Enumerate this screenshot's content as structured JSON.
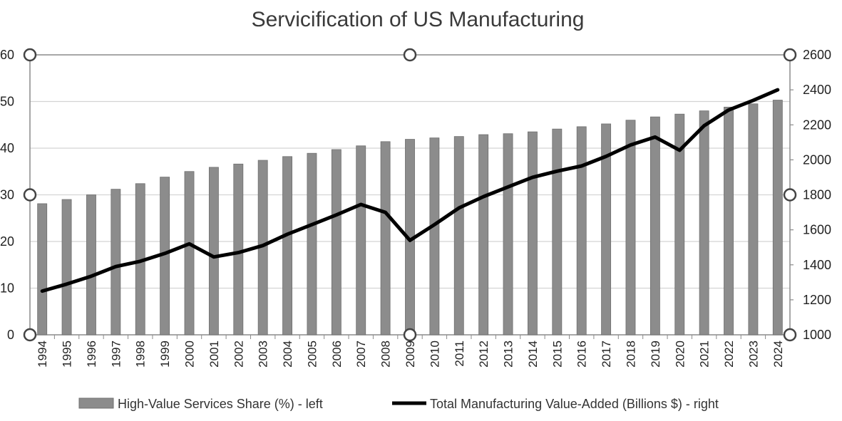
{
  "chart_data": {
    "type": "bar+line",
    "title": "Servicification of US Manufacturing",
    "categories": [
      "1994",
      "1995",
      "1996",
      "1997",
      "1998",
      "1999",
      "2000",
      "2001",
      "2002",
      "2003",
      "2004",
      "2005",
      "2006",
      "2007",
      "2008",
      "2009",
      "2010",
      "2011",
      "2012",
      "2013",
      "2014",
      "2015",
      "2016",
      "2017",
      "2018",
      "2019",
      "2020",
      "2021",
      "2022",
      "2023",
      "2024"
    ],
    "series": [
      {
        "name": "High-Value Services Share (%) - left",
        "type": "bar",
        "axis": "left",
        "color": "#8c8c8c",
        "values": [
          28.1,
          29.0,
          30.0,
          31.2,
          32.4,
          33.8,
          35.0,
          35.9,
          36.6,
          37.4,
          38.2,
          38.9,
          39.7,
          40.5,
          41.4,
          41.9,
          42.2,
          42.5,
          42.9,
          43.1,
          43.5,
          44.1,
          44.6,
          45.2,
          46.0,
          46.7,
          47.3,
          48.0,
          48.8,
          49.5,
          50.3
        ]
      },
      {
        "name": "Total Manufacturing Value-Added (Billions $) - right",
        "type": "line",
        "axis": "right",
        "color": "#000000",
        "values": [
          1250,
          1290,
          1335,
          1390,
          1420,
          1465,
          1520,
          1445,
          1470,
          1510,
          1575,
          1630,
          1685,
          1745,
          1700,
          1540,
          1630,
          1725,
          1790,
          1845,
          1900,
          1935,
          1965,
          2020,
          2085,
          2130,
          2055,
          2195,
          2285,
          2340,
          2400
        ]
      }
    ],
    "y_left": {
      "min": 0,
      "max": 60,
      "ticks": [
        0,
        10,
        20,
        30,
        40,
        50,
        60
      ]
    },
    "y_right": {
      "min": 1000,
      "max": 2600,
      "ticks": [
        1000,
        1200,
        1400,
        1600,
        1800,
        2000,
        2200,
        2400,
        2600
      ]
    },
    "grid": true,
    "legend_position": "bottom"
  }
}
